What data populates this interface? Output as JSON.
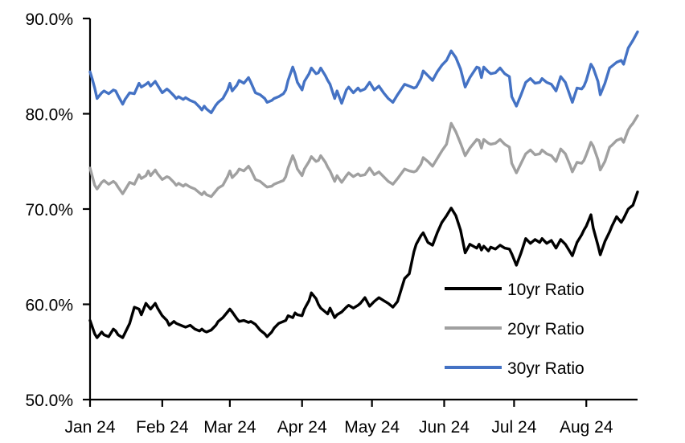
{
  "chart_data": {
    "type": "line",
    "title": "",
    "grid": false,
    "legend_position": "inside-right-middle",
    "x_axis": {
      "unit": "day-of-year 2024 (daily series, Jan–late Aug 2024)",
      "min_day": 1,
      "max_day": 236,
      "tick_days": [
        1,
        32,
        61,
        92,
        122,
        153,
        183,
        214
      ],
      "tick_labels": [
        "Jan 24",
        "Feb 24",
        "Mar 24",
        "Apr 24",
        "May 24",
        "Jun 24",
        "Jul 24",
        "Aug 24"
      ]
    },
    "y_axis": {
      "min": 50,
      "max": 90,
      "tick_values": [
        50,
        60,
        70,
        80,
        90
      ],
      "tick_labels": [
        "50.0%",
        "60.0%",
        "70.0%",
        "80.0%",
        "90.0%"
      ]
    },
    "x_days": [
      1,
      2,
      3,
      4,
      6,
      7,
      9,
      11,
      12,
      13,
      15,
      16,
      18,
      20,
      22,
      23,
      25,
      26,
      27,
      29,
      30,
      32,
      34,
      35,
      37,
      38,
      39,
      41,
      42,
      44,
      46,
      48,
      49,
      50,
      51,
      53,
      55,
      56,
      58,
      60,
      61,
      62,
      64,
      65,
      67,
      69,
      70,
      72,
      74,
      76,
      77,
      79,
      80,
      82,
      84,
      85,
      86,
      88,
      89,
      90,
      92,
      93,
      95,
      96,
      98,
      99,
      100,
      102,
      103,
      104,
      106,
      107,
      109,
      111,
      112,
      114,
      116,
      117,
      119,
      121,
      123,
      125,
      127,
      129,
      131,
      133,
      136,
      138,
      140,
      141,
      143,
      144,
      146,
      148,
      150,
      152,
      154,
      156,
      158,
      160,
      162,
      164,
      167,
      168,
      169,
      170,
      172,
      173,
      175,
      177,
      179,
      181,
      182,
      184,
      186,
      188,
      190,
      192,
      194,
      195,
      197,
      199,
      201,
      203,
      205,
      207,
      208,
      210,
      212,
      213,
      214,
      216,
      217,
      219,
      220,
      222,
      224,
      225,
      227,
      229,
      230,
      232,
      233,
      234,
      236
    ],
    "series": [
      {
        "name": "10yr Ratio",
        "color": "#000000",
        "values": [
          58.3,
          57.6,
          56.9,
          56.5,
          57.1,
          56.8,
          56.6,
          57.4,
          57.2,
          56.8,
          56.5,
          57.0,
          58.0,
          59.7,
          59.5,
          58.9,
          60.1,
          59.8,
          59.5,
          60.1,
          59.6,
          58.8,
          58.3,
          57.8,
          58.2,
          58.0,
          57.9,
          57.7,
          57.6,
          57.8,
          57.4,
          57.2,
          57.4,
          57.2,
          57.1,
          57.3,
          57.8,
          58.2,
          58.6,
          59.2,
          59.5,
          59.2,
          58.5,
          58.2,
          58.3,
          58.1,
          58.2,
          57.9,
          57.3,
          56.9,
          56.6,
          57.1,
          57.5,
          58.0,
          58.2,
          58.3,
          58.8,
          58.6,
          59.1,
          58.9,
          58.8,
          59.5,
          60.4,
          61.2,
          60.6,
          60.0,
          59.6,
          59.2,
          59.0,
          59.6,
          58.6,
          58.9,
          59.2,
          59.7,
          59.9,
          59.6,
          59.9,
          60.1,
          60.7,
          59.8,
          60.3,
          60.7,
          60.4,
          60.1,
          59.7,
          60.3,
          62.7,
          63.2,
          65.5,
          66.3,
          67.2,
          67.5,
          66.5,
          66.2,
          67.5,
          68.6,
          69.3,
          70.1,
          69.3,
          67.8,
          65.4,
          66.3,
          65.9,
          66.3,
          65.7,
          66.1,
          65.6,
          66.0,
          65.8,
          66.2,
          65.9,
          65.8,
          65.3,
          64.1,
          65.4,
          66.9,
          66.4,
          66.8,
          66.5,
          66.9,
          66.4,
          66.7,
          65.9,
          66.8,
          66.3,
          65.5,
          65.1,
          66.5,
          67.3,
          67.8,
          68.2,
          69.4,
          68.0,
          66.2,
          65.2,
          66.6,
          67.6,
          68.2,
          69.2,
          68.6,
          69.0,
          70.0,
          70.2,
          70.4,
          71.8
        ]
      },
      {
        "name": "20yr Ratio",
        "color": "#A0A0A0",
        "values": [
          74.3,
          73.4,
          72.5,
          72.1,
          72.8,
          73.0,
          72.6,
          72.9,
          72.7,
          72.3,
          71.6,
          72.0,
          72.8,
          72.6,
          73.6,
          73.2,
          73.5,
          74.0,
          73.5,
          74.1,
          73.7,
          73.1,
          73.4,
          73.3,
          72.8,
          72.5,
          72.7,
          72.4,
          72.6,
          72.3,
          72.1,
          71.7,
          71.5,
          71.8,
          71.5,
          71.3,
          71.9,
          72.2,
          72.5,
          73.4,
          74.0,
          73.3,
          73.8,
          74.2,
          74.0,
          74.5,
          74.1,
          73.1,
          72.9,
          72.5,
          72.3,
          72.4,
          72.6,
          72.8,
          73.0,
          73.4,
          74.3,
          75.6,
          75.0,
          74.2,
          73.5,
          74.2,
          75.0,
          75.5,
          75.0,
          75.1,
          75.6,
          74.9,
          74.4,
          74.0,
          72.9,
          73.5,
          72.8,
          73.5,
          73.8,
          73.4,
          73.7,
          73.5,
          73.6,
          74.3,
          73.6,
          73.9,
          73.4,
          72.9,
          72.6,
          73.2,
          74.2,
          74.0,
          73.9,
          74.0,
          74.7,
          75.4,
          75.0,
          74.5,
          75.3,
          76.1,
          76.8,
          79.0,
          78.1,
          76.9,
          75.6,
          76.4,
          77.3,
          77.2,
          76.4,
          77.3,
          76.9,
          76.8,
          76.9,
          77.3,
          76.8,
          76.5,
          74.8,
          73.8,
          74.8,
          75.8,
          76.2,
          75.7,
          75.8,
          76.2,
          75.8,
          75.6,
          75.0,
          76.3,
          75.8,
          74.6,
          73.9,
          74.9,
          74.8,
          75.1,
          75.7,
          77.0,
          76.6,
          75.2,
          74.1,
          75.0,
          76.5,
          76.7,
          77.2,
          77.4,
          77.0,
          78.3,
          78.7,
          79.0,
          79.8
        ]
      },
      {
        "name": "30yr Ratio",
        "color": "#4472C4",
        "values": [
          84.4,
          83.6,
          82.7,
          81.6,
          82.2,
          82.4,
          82.1,
          82.5,
          82.4,
          81.9,
          81.0,
          81.5,
          82.2,
          82.1,
          83.2,
          82.8,
          83.1,
          83.3,
          82.9,
          83.4,
          83.0,
          82.2,
          82.6,
          82.4,
          81.9,
          81.6,
          81.8,
          81.5,
          81.7,
          81.4,
          81.2,
          80.7,
          80.4,
          80.8,
          80.5,
          80.1,
          80.9,
          81.2,
          81.6,
          82.5,
          83.2,
          82.4,
          83.0,
          83.5,
          83.2,
          83.8,
          83.3,
          82.2,
          82.0,
          81.6,
          81.2,
          81.4,
          81.6,
          81.8,
          82.1,
          82.5,
          83.5,
          84.9,
          84.2,
          83.3,
          82.5,
          83.4,
          84.2,
          84.8,
          84.2,
          84.3,
          84.8,
          84.0,
          83.5,
          83.1,
          81.6,
          82.4,
          81.1,
          82.5,
          82.8,
          82.2,
          82.7,
          82.4,
          82.6,
          83.3,
          82.5,
          82.9,
          82.2,
          81.6,
          81.2,
          82.0,
          83.1,
          82.9,
          82.7,
          82.8,
          83.7,
          84.5,
          84.0,
          83.5,
          84.4,
          85.1,
          85.6,
          86.6,
          85.9,
          84.7,
          82.8,
          83.8,
          84.9,
          84.8,
          83.8,
          84.9,
          84.4,
          84.2,
          84.3,
          84.8,
          84.2,
          83.9,
          81.8,
          80.8,
          82.0,
          83.3,
          83.7,
          83.2,
          83.3,
          83.7,
          83.3,
          83.1,
          82.4,
          83.9,
          83.3,
          81.9,
          81.2,
          82.7,
          82.6,
          82.9,
          83.5,
          85.2,
          84.8,
          83.4,
          82.0,
          83.2,
          84.8,
          85.0,
          85.4,
          85.6,
          85.2,
          86.9,
          87.3,
          87.7,
          88.6
        ]
      }
    ]
  },
  "legend": {
    "items": [
      {
        "label": "10yr Ratio",
        "color": "#000000"
      },
      {
        "label": "20yr Ratio",
        "color": "#A0A0A0"
      },
      {
        "label": "30yr Ratio",
        "color": "#4472C4"
      }
    ]
  },
  "style_colors": {
    "axis": "#000000",
    "background": "#FFFFFF",
    "text": "#000000"
  }
}
